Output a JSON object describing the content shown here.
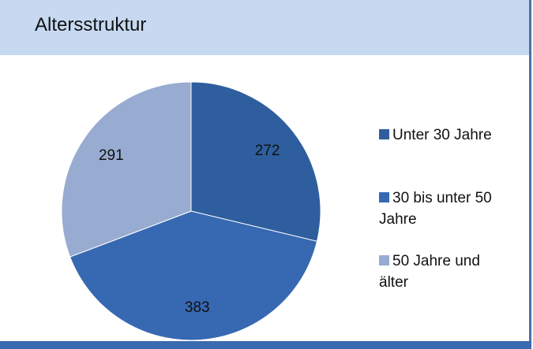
{
  "chart_data": {
    "type": "pie",
    "title": "Altersstruktur",
    "categories": [
      "Unter 30 Jahre",
      "30 bis unter 50 Jahre",
      "50 Jahre und älter"
    ],
    "values": [
      272,
      383,
      291
    ],
    "colors": [
      "#2e5e9e",
      "#3768b2",
      "#98abd0"
    ],
    "legend": "right"
  }
}
